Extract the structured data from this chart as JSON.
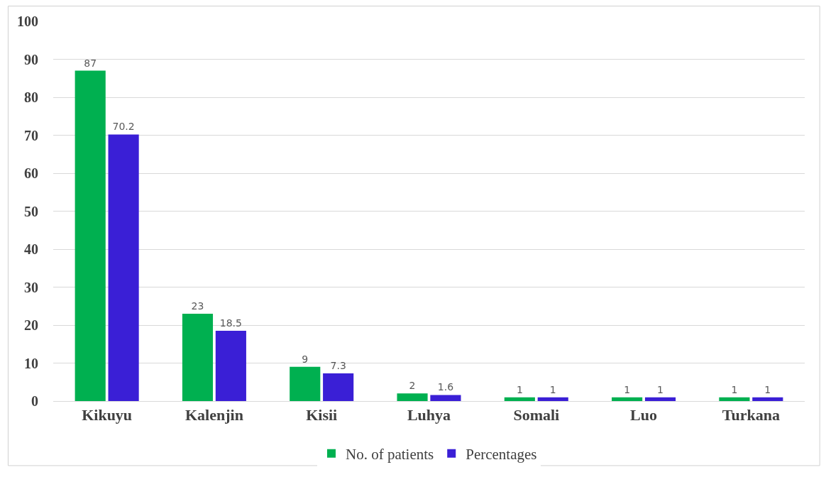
{
  "chart_data": {
    "type": "bar",
    "categories": [
      "Kikuyu",
      "Kalenjin",
      "Kisii",
      "Luhya",
      "Somali",
      "Luo",
      "Turkana"
    ],
    "series": [
      {
        "name": "No. of patients",
        "color": "#00b050",
        "values": [
          87,
          23,
          9,
          2,
          1,
          1,
          1
        ]
      },
      {
        "name": "Percentages",
        "color": "#3a1fd6",
        "values": [
          70.2,
          18.5,
          7.3,
          1.6,
          1,
          1,
          1
        ]
      }
    ],
    "ylim": [
      0,
      100
    ],
    "yticks": [
      0,
      10,
      20,
      30,
      40,
      50,
      60,
      70,
      80,
      90,
      100
    ],
    "grid": "y",
    "legend": "bottom",
    "data_labels": true
  }
}
